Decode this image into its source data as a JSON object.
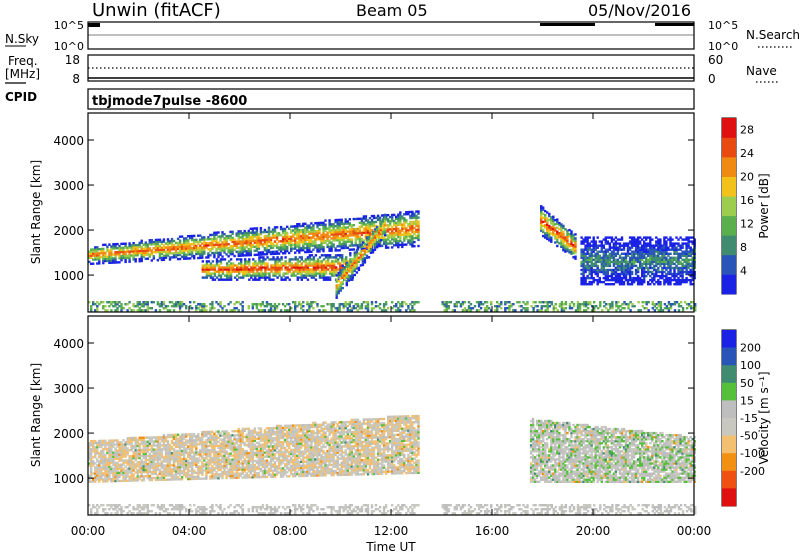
{
  "header": {
    "station": "Unwin (fitACF)",
    "beam": "Beam 05",
    "date": "05/Nov/2016"
  },
  "nsky_panel": {
    "left_label": "N.Sky",
    "right_label": "N.Search",
    "left_ticks": [
      "10^5",
      "10^0"
    ],
    "right_ticks": [
      "10^5",
      "10^0"
    ]
  },
  "freq_panel": {
    "left_label_1": "Freq.",
    "left_label_2": "[MHz]",
    "left_ticks": [
      "18",
      "8"
    ],
    "right_ticks": [
      "60",
      "0"
    ],
    "right_label": "Nave",
    "cpid_label": "CPID",
    "cpid_value": "tbjmode7pulse -8600"
  },
  "colors": {
    "power_scale": [
      "#1a22e6",
      "#2a55b8",
      "#3f8c70",
      "#5bb04e",
      "#9ccd4e",
      "#f2c21a",
      "#f08a12",
      "#e94a10",
      "#e01010"
    ],
    "velocity_scale": [
      "#e01010",
      "#f05012",
      "#f29014",
      "#f2c070",
      "#c8c8c0",
      "#bebebe",
      "#56c03a",
      "#3f8c70",
      "#2a55b8",
      "#1a22e6"
    ]
  },
  "chart_data": [
    {
      "type": "heatmap",
      "name": "power",
      "ylabel": "Slant Range [km]",
      "yticks": [
        "1000",
        "2000",
        "3000",
        "4000"
      ],
      "ylim": [
        180,
        4600
      ],
      "xlim_hours": [
        0,
        24
      ],
      "colorbar_label": "Power [dB]",
      "colorbar_ticks": [
        "4",
        "8",
        "12",
        "16",
        "20",
        "24",
        "28"
      ],
      "colorbar_range": [
        0,
        30
      ],
      "features": [
        {
          "t0": 0.0,
          "t1": 13.1,
          "r_from": [
            1350,
            1500
          ],
          "r_to": [
            1750,
            2300
          ],
          "peak": 28
        },
        {
          "t0": 4.5,
          "t1": 10.5,
          "r_from": [
            1000,
            1200
          ],
          "r_to": [
            1000,
            1350
          ],
          "peak": 30
        },
        {
          "t0": 9.8,
          "t1": 11.8,
          "r_from": [
            600,
            900
          ],
          "r_to": [
            2000,
            2300
          ],
          "peak": 26
        },
        {
          "t0": 17.9,
          "t1": 19.3,
          "r_from": [
            2000,
            2400
          ],
          "r_to": [
            1450,
            1750
          ],
          "peak": 30
        },
        {
          "t0": 19.5,
          "t1": 24.0,
          "r_from": [
            900,
            1700
          ],
          "r_to": [
            900,
            1700
          ],
          "peak": 12
        }
      ]
    },
    {
      "type": "heatmap",
      "name": "velocity",
      "ylabel": "Slant Range [km]",
      "xlabel": "Time UT",
      "yticks": [
        "1000",
        "2000",
        "3000",
        "4000"
      ],
      "ylim": [
        180,
        4600
      ],
      "xlim_hours": [
        0,
        24
      ],
      "xticks": [
        "00:00",
        "04:00",
        "08:00",
        "12:00",
        "16:00",
        "20:00",
        "00:00"
      ],
      "colorbar_label": "Velocity [m s⁻¹]",
      "colorbar_ticks": [
        "200",
        "100",
        "50",
        "15",
        "-15",
        "-50",
        "-100",
        "-200"
      ],
      "colorbar_range": [
        -250,
        250
      ],
      "features": [
        {
          "t0": 0.0,
          "t1": 13.1,
          "r_from": [
            1000,
            1700
          ],
          "r_to": [
            1200,
            2300
          ],
          "typical": -10
        },
        {
          "t0": 17.5,
          "t1": 24.0,
          "r_from": [
            1000,
            2200
          ],
          "r_to": [
            1000,
            1800
          ],
          "typical": 5
        }
      ]
    }
  ]
}
